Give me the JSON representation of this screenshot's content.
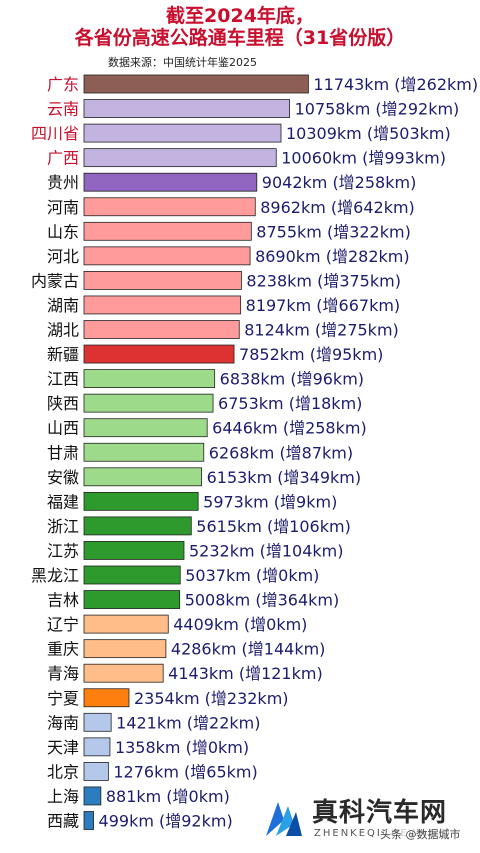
{
  "title_line1": "截至2024年底，",
  "title_line2": "各省份高速公路通车里程（31省份版）",
  "source": "数据来源：中国统计年鉴2025",
  "chart_data": {
    "type": "bar",
    "orientation": "horizontal",
    "unit": "km",
    "increase_prefix": "增",
    "categories": [
      "广东",
      "云南",
      "四川省",
      "广西",
      "贵州",
      "河南",
      "山东",
      "河北",
      "内蒙古",
      "湖南",
      "湖北",
      "新疆",
      "江西",
      "陕西",
      "山西",
      "甘肃",
      "安徽",
      "福建",
      "浙江",
      "江苏",
      "黑龙江",
      "吉林",
      "辽宁",
      "重庆",
      "青海",
      "宁夏",
      "海南",
      "天津",
      "北京",
      "上海",
      "西藏"
    ],
    "values": [
      11743,
      10758,
      10309,
      10060,
      9042,
      8962,
      8755,
      8690,
      8238,
      8197,
      8124,
      7852,
      6838,
      6753,
      6446,
      6268,
      6153,
      5973,
      5615,
      5232,
      5037,
      5008,
      4409,
      4286,
      4143,
      2354,
      1421,
      1358,
      1276,
      881,
      499
    ],
    "increase": [
      262,
      292,
      503,
      993,
      258,
      642,
      322,
      282,
      375,
      667,
      275,
      95,
      96,
      18,
      258,
      87,
      349,
      9,
      106,
      104,
      0,
      364,
      0,
      144,
      121,
      232,
      22,
      0,
      65,
      0,
      92
    ],
    "bar_colors": [
      "#8c5e55",
      "#c3b3e0",
      "#c3b3e0",
      "#c3b3e0",
      "#9166c0",
      "#ff9b9b",
      "#ff9b9b",
      "#ff9b9b",
      "#ff9b9b",
      "#ff9b9b",
      "#ff9b9b",
      "#dc3232",
      "#9ddb8b",
      "#9ddb8b",
      "#9ddb8b",
      "#9ddb8b",
      "#9ddb8b",
      "#2e9a2e",
      "#2e9a2e",
      "#2e9a2e",
      "#2e9a2e",
      "#2e9a2e",
      "#ffbd8a",
      "#ffbd8a",
      "#ffbd8a",
      "#ff7f0e",
      "#b3c8ea",
      "#b3c8ea",
      "#b3c8ea",
      "#2c7cbf",
      "#2c7cbf"
    ],
    "highlight_label_color": "#c8102e",
    "default_label_color": "#111111",
    "value_label_color": "#1c1c6e",
    "highlighted_categories": [
      "广东",
      "云南",
      "四川省",
      "广西"
    ]
  },
  "watermark": {
    "name": "真科汽车网",
    "sub": "ZHENKEQICHEWANG",
    "handle": "头条 @数据城市"
  }
}
